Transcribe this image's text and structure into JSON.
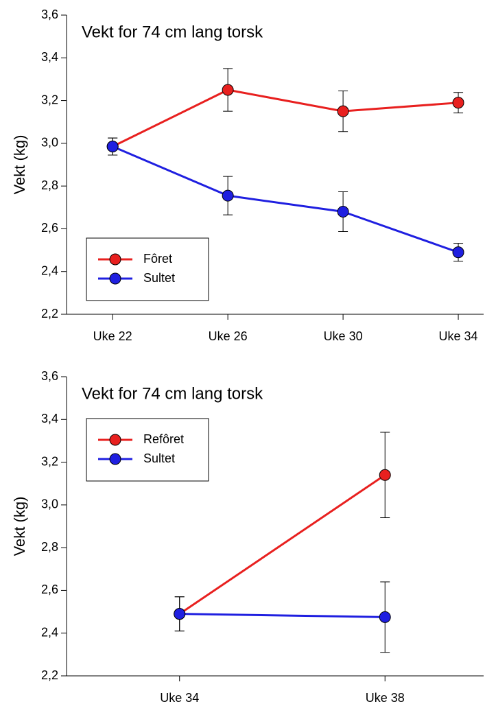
{
  "chart_data": [
    {
      "type": "line",
      "title": "Vekt for 74 cm lang torsk",
      "y_label": "Vekt (kg)",
      "categories": [
        "Uke 22",
        "Uke 26",
        "Uke 30",
        "Uke 34"
      ],
      "series": [
        {
          "name": "Fôret",
          "color": "#e8201f",
          "values": [
            2.985,
            3.25,
            3.15,
            3.19
          ],
          "errors": [
            0.04,
            0.1,
            0.095,
            0.048
          ]
        },
        {
          "name": "Sultet",
          "color": "#1f1fe0",
          "values": [
            2.985,
            2.755,
            2.68,
            2.49
          ],
          "errors": [
            0.04,
            0.09,
            0.093,
            0.042
          ]
        }
      ],
      "ylim": [
        2.2,
        3.6
      ],
      "yticks": [
        {
          "value": 2.2,
          "label": "2,2"
        },
        {
          "value": 2.4,
          "label": "2,4"
        },
        {
          "value": 2.6,
          "label": "2,6"
        },
        {
          "value": 2.8,
          "label": "2,8"
        },
        {
          "value": 3.0,
          "label": "3,0"
        },
        {
          "value": 3.2,
          "label": "3,2"
        },
        {
          "value": 3.4,
          "label": "3,4"
        },
        {
          "value": 3.6,
          "label": "3,6"
        }
      ],
      "legend": "lower left"
    },
    {
      "type": "line",
      "title": "Vekt for 74 cm lang torsk",
      "y_label": "Vekt (kg)",
      "categories": [
        "Uke 34",
        "Uke 38"
      ],
      "series": [
        {
          "name": "Refôret",
          "color": "#e8201f",
          "values": [
            2.49,
            3.14
          ],
          "errors": [
            0.08,
            0.2
          ]
        },
        {
          "name": "Sultet",
          "color": "#1f1fe0",
          "values": [
            2.49,
            2.475
          ],
          "errors": [
            0.08,
            0.165
          ]
        }
      ],
      "ylim": [
        2.2,
        3.6
      ],
      "yticks": [
        {
          "value": 2.2,
          "label": "2,2"
        },
        {
          "value": 2.4,
          "label": "2,4"
        },
        {
          "value": 2.6,
          "label": "2,6"
        },
        {
          "value": 2.8,
          "label": "2,8"
        },
        {
          "value": 3.0,
          "label": "3,0"
        },
        {
          "value": 3.2,
          "label": "3,2"
        },
        {
          "value": 3.4,
          "label": "3,4"
        },
        {
          "value": 3.6,
          "label": "3,6"
        }
      ],
      "legend": "upper left"
    }
  ]
}
